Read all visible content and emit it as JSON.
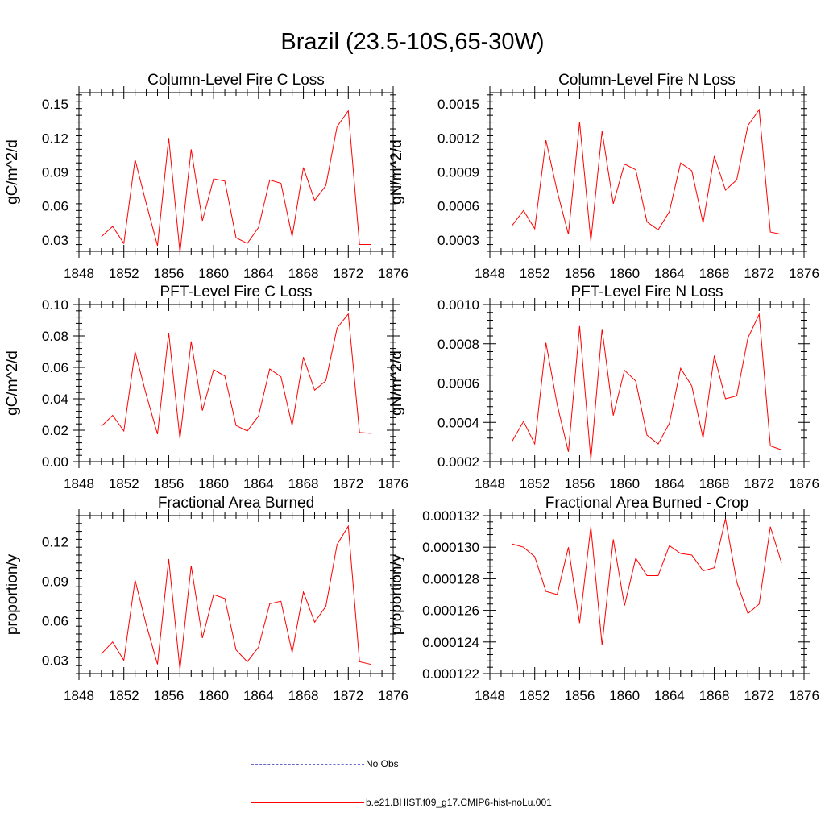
{
  "title": "Brazil (23.5-10S,65-30W)",
  "legend": [
    {
      "label": "No Obs",
      "color": "#6666cc",
      "style": "dashed"
    },
    {
      "label": "b.e21.BHIST.f09_g17.CMIP6-hist-noLu.001",
      "color": "#ff0000",
      "style": "solid"
    }
  ],
  "chart_data": [
    {
      "type": "line",
      "title": "Column-Level Fire C Loss",
      "ylabel": "gC/m^2/d",
      "xlim": [
        1848,
        1876
      ],
      "ylim": [
        0.02,
        0.16
      ],
      "xticks": [
        "1848",
        "1852",
        "1856",
        "1860",
        "1864",
        "1868",
        "1872",
        "1876"
      ],
      "yticks": [
        "0.03",
        "0.06",
        "0.09",
        "0.12",
        "0.15"
      ],
      "x": [
        1850,
        1851,
        1852,
        1853,
        1854,
        1855,
        1856,
        1857,
        1858,
        1859,
        1860,
        1861,
        1862,
        1863,
        1864,
        1865,
        1866,
        1867,
        1868,
        1869,
        1870,
        1871,
        1872,
        1873,
        1874
      ],
      "series": [
        {
          "values": [
            0.033,
            0.042,
            0.027,
            0.101,
            0.062,
            0.025,
            0.12,
            0.019,
            0.11,
            0.047,
            0.084,
            0.082,
            0.032,
            0.027,
            0.041,
            0.083,
            0.08,
            0.033,
            0.094,
            0.065,
            0.078,
            0.13,
            0.144,
            0.026,
            0.026
          ],
          "color": "#ff0000"
        }
      ]
    },
    {
      "type": "line",
      "title": "Column-Level Fire N Loss",
      "ylabel": "gN/m^2/d",
      "xlim": [
        1848,
        1876
      ],
      "ylim": [
        0.0002,
        0.0016
      ],
      "xticks": [
        "1848",
        "1852",
        "1856",
        "1860",
        "1864",
        "1868",
        "1872",
        "1876"
      ],
      "yticks": [
        "0.0003",
        "0.0006",
        "0.0009",
        "0.0012",
        "0.0015"
      ],
      "x": [
        1850,
        1851,
        1852,
        1853,
        1854,
        1855,
        1856,
        1857,
        1858,
        1859,
        1860,
        1861,
        1862,
        1863,
        1864,
        1865,
        1866,
        1867,
        1868,
        1869,
        1870,
        1871,
        1872,
        1873,
        1874
      ],
      "series": [
        {
          "values": [
            0.00043,
            0.00056,
            0.0004,
            0.00118,
            0.00073,
            0.00035,
            0.00134,
            0.00029,
            0.00126,
            0.00062,
            0.00097,
            0.00092,
            0.00046,
            0.00039,
            0.00055,
            0.00098,
            0.00091,
            0.00045,
            0.00104,
            0.00074,
            0.00083,
            0.00131,
            0.00145,
            0.00037,
            0.00035
          ],
          "color": "#ff0000"
        }
      ]
    },
    {
      "type": "line",
      "title": "PFT-Level Fire C Loss",
      "ylabel": "gC/m^2/d",
      "xlim": [
        1848,
        1876
      ],
      "ylim": [
        0.0,
        0.1
      ],
      "xticks": [
        "1848",
        "1852",
        "1856",
        "1860",
        "1864",
        "1868",
        "1872",
        "1876"
      ],
      "yticks": [
        "0.00",
        "0.02",
        "0.04",
        "0.06",
        "0.08",
        "0.10"
      ],
      "x": [
        1850,
        1851,
        1852,
        1853,
        1854,
        1855,
        1856,
        1857,
        1858,
        1859,
        1860,
        1861,
        1862,
        1863,
        1864,
        1865,
        1866,
        1867,
        1868,
        1869,
        1870,
        1871,
        1872,
        1873,
        1874
      ],
      "series": [
        {
          "values": [
            0.0225,
            0.0295,
            0.0195,
            0.07,
            0.0425,
            0.0175,
            0.082,
            0.0145,
            0.0765,
            0.0325,
            0.0585,
            0.0545,
            0.023,
            0.0195,
            0.029,
            0.059,
            0.054,
            0.023,
            0.0665,
            0.0455,
            0.0515,
            0.085,
            0.094,
            0.0185,
            0.018
          ],
          "color": "#ff0000"
        }
      ]
    },
    {
      "type": "line",
      "title": "PFT-Level Fire N Loss",
      "ylabel": "gN/m^2/d",
      "xlim": [
        1848,
        1876
      ],
      "ylim": [
        0.0002,
        0.001
      ],
      "xticks": [
        "1848",
        "1852",
        "1856",
        "1860",
        "1864",
        "1868",
        "1872",
        "1876"
      ],
      "yticks": [
        "0.0002",
        "0.0004",
        "0.0006",
        "0.0008",
        "0.0010"
      ],
      "x": [
        1850,
        1851,
        1852,
        1853,
        1854,
        1855,
        1856,
        1857,
        1858,
        1859,
        1860,
        1861,
        1862,
        1863,
        1864,
        1865,
        1866,
        1867,
        1868,
        1869,
        1870,
        1871,
        1872,
        1873,
        1874
      ],
      "series": [
        {
          "values": [
            0.000305,
            0.000405,
            0.00029,
            0.000805,
            0.00049,
            0.00025,
            0.00089,
            0.00021,
            0.000875,
            0.000435,
            0.000665,
            0.00061,
            0.000335,
            0.00029,
            0.000395,
            0.000675,
            0.000585,
            0.00032,
            0.00074,
            0.00052,
            0.000535,
            0.00083,
            0.00095,
            0.00028,
            0.00026
          ],
          "color": "#ff0000"
        }
      ]
    },
    {
      "type": "line",
      "title": "Fractional Area Burned",
      "ylabel": "proportion/y",
      "xlim": [
        1848,
        1876
      ],
      "ylim": [
        0.02,
        0.14
      ],
      "xticks": [
        "1848",
        "1852",
        "1856",
        "1860",
        "1864",
        "1868",
        "1872",
        "1876"
      ],
      "yticks": [
        "0.03",
        "0.06",
        "0.09",
        "0.12"
      ],
      "x": [
        1850,
        1851,
        1852,
        1853,
        1854,
        1855,
        1856,
        1857,
        1858,
        1859,
        1860,
        1861,
        1862,
        1863,
        1864,
        1865,
        1866,
        1867,
        1868,
        1869,
        1870,
        1871,
        1872,
        1873,
        1874
      ],
      "series": [
        {
          "values": [
            0.035,
            0.044,
            0.03,
            0.091,
            0.057,
            0.027,
            0.107,
            0.023,
            0.102,
            0.047,
            0.08,
            0.077,
            0.038,
            0.029,
            0.04,
            0.073,
            0.075,
            0.036,
            0.082,
            0.059,
            0.071,
            0.118,
            0.132,
            0.029,
            0.027
          ],
          "color": "#ff0000"
        }
      ]
    },
    {
      "type": "line",
      "title": "Fractional Area Burned - Crop",
      "ylabel": "proportion/y",
      "xlim": [
        1848,
        1876
      ],
      "ylim": [
        0.000122,
        0.000132
      ],
      "xticks": [
        "1848",
        "1852",
        "1856",
        "1860",
        "1864",
        "1868",
        "1872",
        "1876"
      ],
      "yticks": [
        "0.000122",
        "0.000124",
        "0.000126",
        "0.000128",
        "0.000130",
        "0.000132"
      ],
      "x": [
        1850,
        1851,
        1852,
        1853,
        1854,
        1855,
        1856,
        1857,
        1858,
        1859,
        1860,
        1861,
        1862,
        1863,
        1864,
        1865,
        1866,
        1867,
        1868,
        1869,
        1870,
        1871,
        1872,
        1873,
        1874
      ],
      "series": [
        {
          "values": [
            0.0001302,
            0.00013,
            0.0001294,
            0.0001272,
            0.000127,
            0.00013,
            0.0001252,
            0.0001313,
            0.0001238,
            0.0001305,
            0.0001263,
            0.0001293,
            0.0001282,
            0.0001282,
            0.0001301,
            0.0001296,
            0.0001295,
            0.0001285,
            0.0001287,
            0.0001318,
            0.0001278,
            0.0001258,
            0.0001264,
            0.0001313,
            0.000129
          ],
          "color": "#ff0000"
        }
      ]
    }
  ]
}
